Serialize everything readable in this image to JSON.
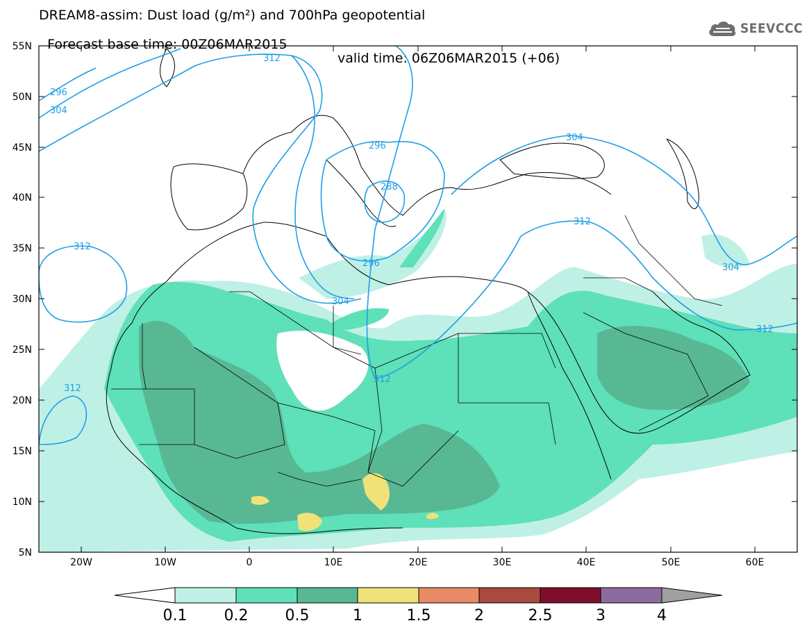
{
  "header": {
    "line1": "DREAM8-assim: Dust load (g/m²) and 700hPa geopotential",
    "line2_base": "Forecast base time: 00Z06MAR2015",
    "line2_valid": "valid time: 06Z06MAR2015 (+06)"
  },
  "logo": {
    "text": "SEEVCCC",
    "icon": "cloud-icon"
  },
  "map": {
    "lat_labels": [
      "55N",
      "50N",
      "45N",
      "40N",
      "35N",
      "30N",
      "25N",
      "20N",
      "15N",
      "10N",
      "5N"
    ],
    "lon_labels": [
      "20W",
      "10W",
      "0",
      "10E",
      "20E",
      "30E",
      "40E",
      "50E",
      "60E"
    ],
    "contour_labels": [
      "296",
      "304",
      "312",
      "312",
      "296",
      "288",
      "296",
      "304",
      "312",
      "312",
      "304",
      "312",
      "312",
      "304"
    ]
  },
  "colorbar": {
    "labels": [
      "0.1",
      "0.2",
      "0.5",
      "1",
      "1.5",
      "2",
      "2.5",
      "3",
      "4"
    ],
    "colors": [
      "#bff0e6",
      "#5ee0b8",
      "#58b894",
      "#f0e278",
      "#e88a66",
      "#a84a3e",
      "#7e0f2c",
      "#8c6c9e",
      "#a0a0a0"
    ]
  },
  "colors": {
    "contour": "#1e9ee6",
    "coast": "#000000"
  }
}
